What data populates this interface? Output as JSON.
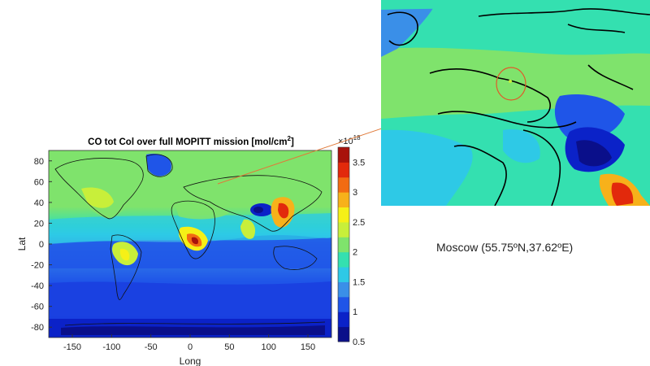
{
  "chart_data": {
    "type": "heatmap",
    "title_prefix": "CO tot Col over full MOPITT mission [mol/cm",
    "title_sup": "2",
    "title_suffix": "]",
    "xlabel": "Long",
    "ylabel": "Lat",
    "xlim": [
      -180,
      180
    ],
    "ylim": [
      -90,
      90
    ],
    "x_ticks": [
      -150,
      -100,
      -50,
      0,
      50,
      100,
      150
    ],
    "y_ticks": [
      80,
      60,
      40,
      20,
      0,
      -20,
      -40,
      -60,
      -80
    ],
    "colorbar": {
      "multiplier_base": "×10",
      "multiplier_exp": "18",
      "range": [
        0.5,
        3.75
      ],
      "ticks": [
        "0.5",
        "1",
        "1.5",
        "2",
        "2.5",
        "3",
        "3.5"
      ],
      "colors": [
        "#0a0f8a",
        "#0b22c8",
        "#1f55e8",
        "#3a8fe8",
        "#2ec9e6",
        "#34e0b0",
        "#7fe36c",
        "#c8ef3a",
        "#f5f017",
        "#f7b11a",
        "#f26b12",
        "#e2290c",
        "#a8120c"
      ]
    },
    "annotation": "Moscow (55.75ºN,37.62ºE)",
    "highlight": {
      "lon": 37.62,
      "lat": 55.75
    }
  },
  "colors": {
    "ocean_tropics": "#3a8fe8",
    "ocean_south": "#1f55e8",
    "antarctic": "#0b22c8",
    "nh_background": "#7fe36c",
    "arrow": "#e07a3a",
    "circle": "#e05a2a"
  }
}
